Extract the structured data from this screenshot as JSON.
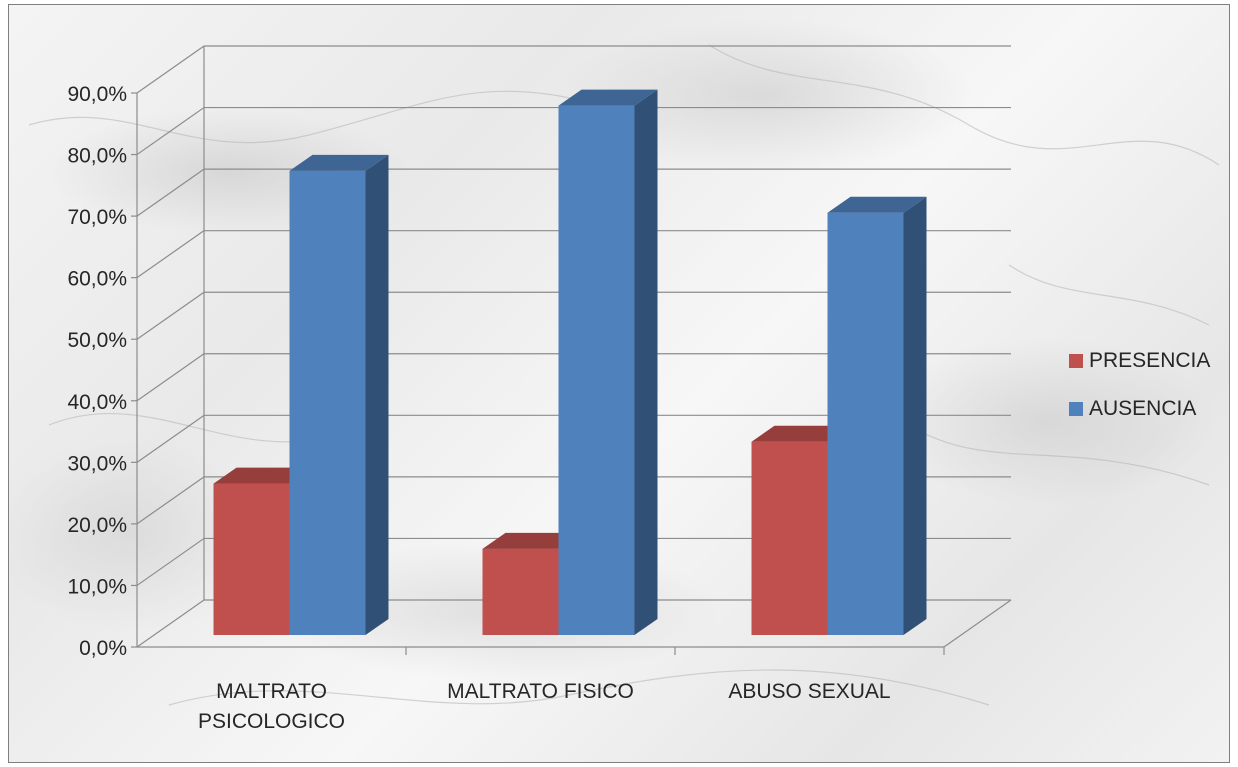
{
  "chart_data": {
    "type": "bar",
    "title": "",
    "xlabel": "",
    "ylabel": "",
    "categories": [
      [
        "MALTRATO",
        "PSICOLOGICO"
      ],
      [
        "MALTRATO FISICO"
      ],
      [
        "ABUSO SEXUAL"
      ]
    ],
    "series": [
      {
        "name": "PRESENCIA",
        "color": "#C0504D",
        "values": [
          24.6,
          14.0,
          31.4
        ]
      },
      {
        "name": "AUSENCIA",
        "color": "#4F81BD",
        "values": [
          75.4,
          86.0,
          68.6
        ]
      }
    ],
    "ylim": [
      0,
      90
    ],
    "yticks": [
      "0,0%",
      "10,0%",
      "20,0%",
      "30,0%",
      "40,0%",
      "50,0%",
      "60,0%",
      "70,0%",
      "80,0%",
      "90,0%"
    ],
    "grid": true,
    "legend": "right",
    "style": "3d-clustered"
  }
}
